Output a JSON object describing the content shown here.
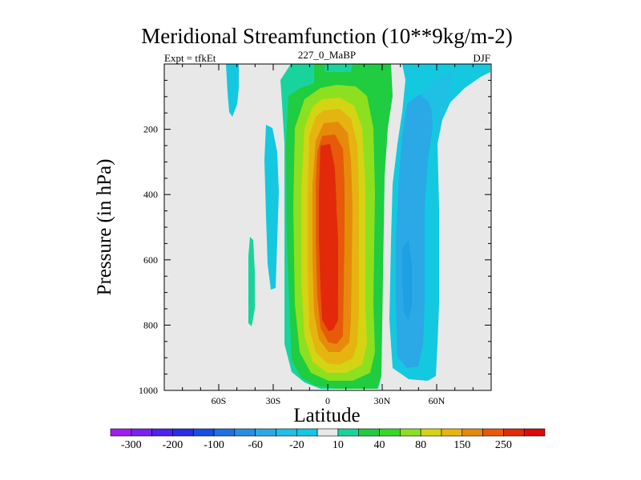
{
  "chart_data": {
    "type": "contour",
    "title": "Meridional Streamfunction (10**9kg/m-2)",
    "left_label": "Expt = tfkEt",
    "center_label": "227_0_MaBP",
    "right_label": "DJF",
    "xlabel": "Latitude",
    "ylabel": "Pressure (in hPa)",
    "xlim": [
      -90,
      90
    ],
    "ylim": [
      1000,
      0
    ],
    "y_reversed": true,
    "x_ticks": [
      {
        "value": -60,
        "label": "60S"
      },
      {
        "value": -30,
        "label": "30S"
      },
      {
        "value": 0,
        "label": "0"
      },
      {
        "value": 30,
        "label": "30N"
      },
      {
        "value": 60,
        "label": "60N"
      }
    ],
    "y_ticks": [
      {
        "value": 200,
        "label": "200"
      },
      {
        "value": 400,
        "label": "400"
      },
      {
        "value": 600,
        "label": "600"
      },
      {
        "value": 800,
        "label": "800"
      },
      {
        "value": 1000,
        "label": "1000"
      }
    ],
    "background_color": "#e8e8e8",
    "colorbar": {
      "levels": [
        -300,
        -250,
        -200,
        -150,
        -100,
        -80,
        -60,
        -40,
        -20,
        -10,
        10,
        20,
        40,
        60,
        80,
        100,
        150,
        200,
        250,
        300
      ],
      "labels": [
        "-300",
        "-200",
        "-100",
        "-60",
        "-20",
        "10",
        "40",
        "80",
        "150",
        "250"
      ],
      "label_levels": [
        -300,
        -200,
        -100,
        -60,
        -20,
        10,
        40,
        80,
        150,
        250
      ],
      "colors": [
        "#9f1fef",
        "#7a22ee",
        "#4f22ee",
        "#2a2ee6",
        "#1650e0",
        "#1f70e0",
        "#2590e2",
        "#2ba8e6",
        "#1ec0e4",
        "#14c8e0",
        "#e8e8e8",
        "#18d49c",
        "#20cc40",
        "#36d828",
        "#8ce020",
        "#d4d414",
        "#e6b410",
        "#e68a0c",
        "#e65a0a",
        "#e22a0a",
        "#dc0a0a"
      ]
    },
    "contour_regions": [
      {
        "name": "positive-cell",
        "level": 10,
        "color": "#18d49c"
      },
      {
        "name": "positive-cell",
        "level": 20,
        "color": "#20cc40"
      },
      {
        "name": "positive-cell",
        "level": 40,
        "color": "#36d828"
      },
      {
        "name": "positive-cell",
        "level": 60,
        "color": "#8ce020"
      },
      {
        "name": "positive-cell",
        "level": 80,
        "color": "#d4d414"
      },
      {
        "name": "positive-cell",
        "level": 100,
        "color": "#e6b410"
      },
      {
        "name": "positive-cell",
        "level": 150,
        "color": "#e68a0c"
      },
      {
        "name": "positive-cell",
        "level": 200,
        "color": "#e65a0a"
      },
      {
        "name": "positive-cell",
        "level": 250,
        "color": "#e22a0a"
      },
      {
        "name": "negative-cell-north",
        "level": -10,
        "color": "#14c8e0"
      },
      {
        "name": "negative-cell-north",
        "level": -20,
        "color": "#1ec0e4"
      },
      {
        "name": "negative-cell-north",
        "level": -40,
        "color": "#2ba8e6"
      },
      {
        "name": "negative-patch-south-1",
        "level": -10,
        "color": "#14c8e0"
      },
      {
        "name": "negative-patch-south-2",
        "level": -10,
        "color": "#14c8e0"
      },
      {
        "name": "positive-patch-south",
        "level": 10,
        "color": "#18d49c"
      }
    ]
  }
}
